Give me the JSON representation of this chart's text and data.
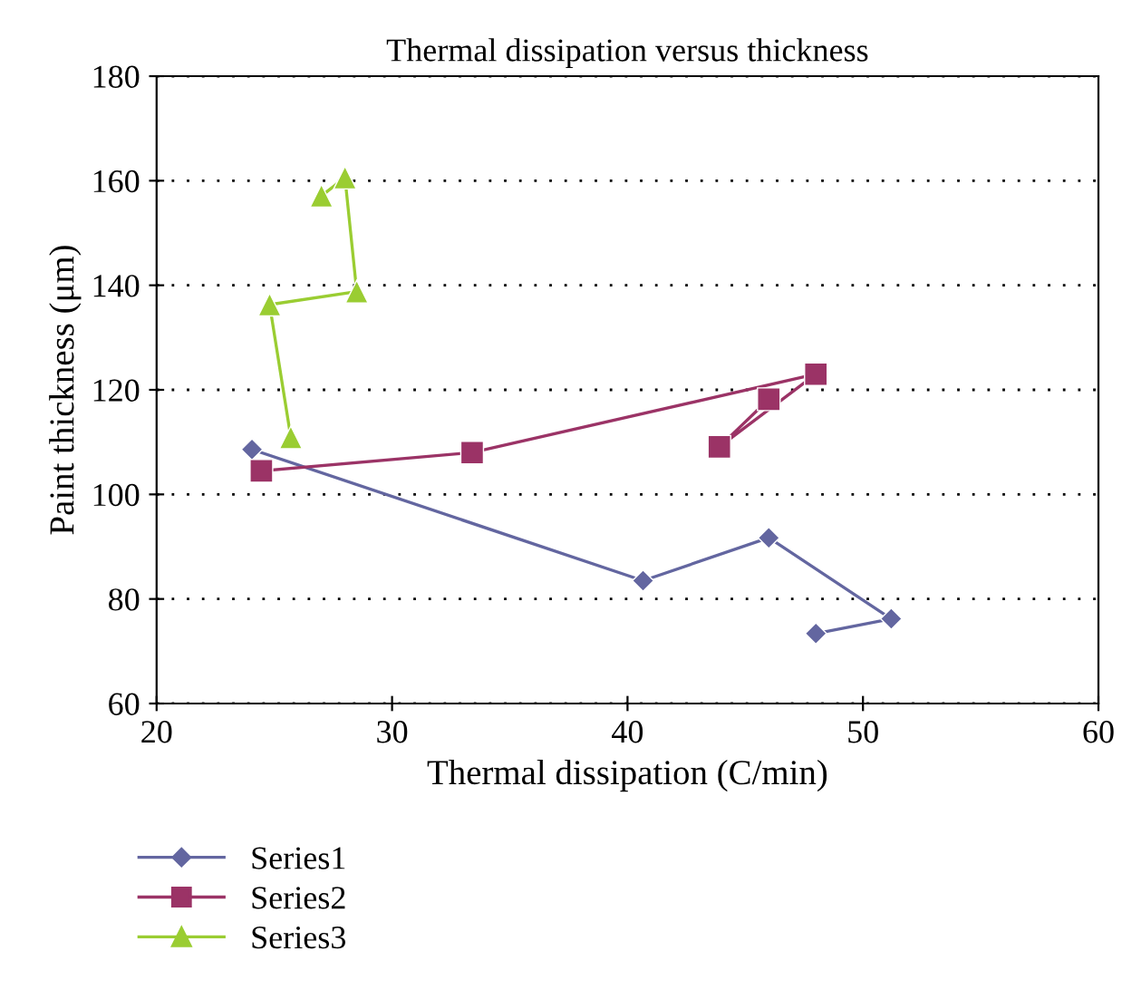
{
  "chart_data": {
    "type": "line",
    "title": "Thermal dissipation versus thickness",
    "xlabel": "Thermal dissipation (C/min)",
    "ylabel": "Paint thickness (μm)",
    "xlim": [
      20,
      60
    ],
    "xticks": [
      20,
      30,
      40,
      50,
      60
    ],
    "ylim": [
      60,
      180
    ],
    "yticks": [
      60,
      80,
      100,
      120,
      140,
      160,
      180
    ],
    "grid": "y",
    "legend": "bottom left",
    "line_style": "solid",
    "series": [
      {
        "name": "Series1",
        "color": "#6366a0",
        "marker": "diamond",
        "x": [
          24.05,
          40.66,
          46.0,
          51.2,
          48.0
        ],
        "values": [
          108.6,
          83.5,
          91.7,
          76.2,
          73.4
        ]
      },
      {
        "name": "Series2",
        "color": "#9b3366",
        "marker": "square",
        "x": [
          24.45,
          33.4,
          48.0,
          43.9,
          46.0
        ],
        "values": [
          104.5,
          108.0,
          123.0,
          109.1,
          118.2
        ]
      },
      {
        "name": "Series3",
        "color": "#9acd32",
        "marker": "triangle",
        "x": [
          25.7,
          24.8,
          28.5,
          28.0,
          27.0
        ],
        "values": [
          110.9,
          136.3,
          138.8,
          160.6,
          157.1
        ]
      }
    ]
  }
}
